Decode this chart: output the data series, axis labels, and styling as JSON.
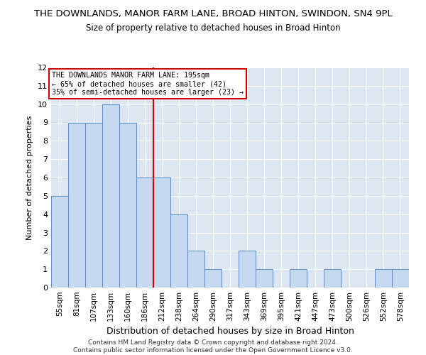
{
  "title": "THE DOWNLANDS, MANOR FARM LANE, BROAD HINTON, SWINDON, SN4 9PL",
  "subtitle": "Size of property relative to detached houses in Broad Hinton",
  "xlabel": "Distribution of detached houses by size in Broad Hinton",
  "ylabel": "Number of detached properties",
  "categories": [
    "55sqm",
    "81sqm",
    "107sqm",
    "133sqm",
    "160sqm",
    "186sqm",
    "212sqm",
    "238sqm",
    "264sqm",
    "290sqm",
    "317sqm",
    "343sqm",
    "369sqm",
    "395sqm",
    "421sqm",
    "447sqm",
    "473sqm",
    "500sqm",
    "526sqm",
    "552sqm",
    "578sqm"
  ],
  "values": [
    5,
    9,
    9,
    10,
    9,
    6,
    6,
    4,
    2,
    1,
    0,
    2,
    1,
    0,
    1,
    0,
    1,
    0,
    0,
    1,
    1
  ],
  "bar_color": "#c5d9f1",
  "bar_edgecolor": "#5b8ac5",
  "background_color": "#dce6f1",
  "vline_x": 5.5,
  "vline_color": "#cc0000",
  "ylim": [
    0,
    12
  ],
  "yticks": [
    0,
    1,
    2,
    3,
    4,
    5,
    6,
    7,
    8,
    9,
    10,
    11,
    12
  ],
  "annotation_text": "THE DOWNLANDS MANOR FARM LANE: 195sqm\n← 65% of detached houses are smaller (42)\n35% of semi-detached houses are larger (23) →",
  "annotation_boxcolor": "white",
  "annotation_edgecolor": "#cc0000",
  "footer_line1": "Contains HM Land Registry data © Crown copyright and database right 2024.",
  "footer_line2": "Contains public sector information licensed under the Open Government Licence v3.0.",
  "title_fontsize": 9.5,
  "subtitle_fontsize": 8.5,
  "ylabel_fontsize": 8,
  "xlabel_fontsize": 9,
  "tick_fontsize": 7.5,
  "footer_fontsize": 6.5
}
